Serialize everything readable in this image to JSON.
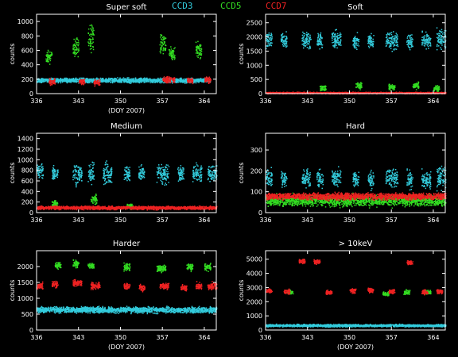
{
  "legend": [
    {
      "label": "CCD3",
      "color": "#33ccdd"
    },
    {
      "label": "CCD5",
      "color": "#33dd22"
    },
    {
      "label": "CCD7",
      "color": "#ee2222"
    }
  ],
  "chart_data": [
    {
      "type": "scatter",
      "title": "Super soft",
      "xlabel": "(DOY 2007)",
      "ylabel": "counts",
      "xlim": [
        336,
        366
      ],
      "ylim": [
        0,
        1100
      ],
      "xticks": [
        336,
        343,
        350,
        357,
        364
      ],
      "yticks": [
        0,
        200,
        400,
        600,
        800,
        1000
      ],
      "series": [
        {
          "name": "CCD3",
          "color": "#33ccdd",
          "clusters": [
            [
              336,
              365,
              190,
              30
            ]
          ]
        },
        {
          "name": "CCD5",
          "color": "#33dd22",
          "clusters": [
            [
              337.5,
              338.5,
              520,
              80
            ],
            [
              342,
              343,
              650,
              120
            ],
            [
              344.5,
              345.5,
              800,
              220
            ],
            [
              356.5,
              357.5,
              700,
              120
            ],
            [
              358,
              359,
              550,
              100
            ],
            [
              362.5,
              363.5,
              600,
              100
            ]
          ]
        },
        {
          "name": "CCD7",
          "color": "#ee2222",
          "clusters": [
            [
              338,
              339,
              170,
              40
            ],
            [
              343,
              344,
              170,
              40
            ],
            [
              345.5,
              346.5,
              160,
              40
            ],
            [
              357,
              359,
              200,
              40
            ],
            [
              361,
              362,
              190,
              40
            ],
            [
              364,
              365,
              200,
              40
            ]
          ]
        }
      ]
    },
    {
      "type": "scatter",
      "title": "Soft",
      "xlabel": "",
      "ylabel": "counts",
      "xlim": [
        336,
        366
      ],
      "ylim": [
        0,
        2800
      ],
      "xticks": [
        336,
        343,
        350,
        357,
        364
      ],
      "yticks": [
        0,
        500,
        1000,
        1500,
        2000,
        2500
      ],
      "series": [
        {
          "name": "CCD3",
          "color": "#33ccdd",
          "clusters": [
            [
              336,
              337,
              1900,
              300
            ],
            [
              338.5,
              339.5,
              1900,
              250
            ],
            [
              342,
              343.5,
              1900,
              300
            ],
            [
              344.5,
              345.5,
              1900,
              250
            ],
            [
              347,
              348.5,
              1900,
              300
            ],
            [
              350.5,
              351.5,
              1850,
              250
            ],
            [
              353,
              354,
              1850,
              250
            ],
            [
              356,
              358,
              1900,
              300
            ],
            [
              359.5,
              360.5,
              1850,
              250
            ],
            [
              362,
              363.5,
              1900,
              250
            ],
            [
              364.5,
              366,
              1950,
              300
            ]
          ]
        },
        {
          "name": "CCD5",
          "color": "#33dd22",
          "clusters": [
            [
              345,
              346,
              200,
              100
            ],
            [
              351,
              352,
              300,
              100
            ],
            [
              356.5,
              357.5,
              250,
              100
            ],
            [
              360.5,
              361.5,
              300,
              100
            ],
            [
              364,
              365,
              200,
              100
            ]
          ]
        },
        {
          "name": "CCD7",
          "color": "#ee2222",
          "clusters": [
            [
              336,
              366,
              40,
              25
            ]
          ]
        }
      ]
    },
    {
      "type": "scatter",
      "title": "Medium",
      "xlabel": "",
      "ylabel": "counts",
      "xlim": [
        336,
        366
      ],
      "ylim": [
        0,
        1500
      ],
      "xticks": [
        336,
        343,
        350,
        357,
        364
      ],
      "yticks": [
        0,
        200,
        400,
        600,
        800,
        1000,
        1200,
        1400
      ],
      "series": [
        {
          "name": "CCD3",
          "color": "#33ccdd",
          "clusters": [
            [
              336,
              337,
              800,
              150
            ],
            [
              338.5,
              339.5,
              750,
              150
            ],
            [
              342,
              343.5,
              750,
              180
            ],
            [
              344.5,
              345.5,
              750,
              180
            ],
            [
              347,
              348.5,
              750,
              180
            ],
            [
              350.5,
              351.5,
              750,
              150
            ],
            [
              353,
              354,
              750,
              150
            ],
            [
              356,
              358,
              750,
              180
            ],
            [
              359.5,
              360.5,
              750,
              150
            ],
            [
              362,
              363.5,
              750,
              150
            ],
            [
              364.5,
              366,
              750,
              150
            ]
          ]
        },
        {
          "name": "CCD5",
          "color": "#33dd22",
          "clusters": [
            [
              338.5,
              339.5,
              180,
              60
            ],
            [
              345,
              346,
              260,
              80
            ],
            [
              351,
              352,
              130,
              50
            ]
          ]
        },
        {
          "name": "CCD7",
          "color": "#ee2222",
          "clusters": [
            [
              336,
              366,
              100,
              30
            ]
          ]
        }
      ]
    },
    {
      "type": "scatter",
      "title": "Hard",
      "xlabel": "",
      "ylabel": "counts",
      "xlim": [
        336,
        366
      ],
      "ylim": [
        0,
        380
      ],
      "xticks": [
        336,
        343,
        350,
        357,
        364
      ],
      "yticks": [
        0,
        100,
        200,
        300
      ],
      "series": [
        {
          "name": "CCD3",
          "color": "#33ccdd",
          "clusters": [
            [
              336,
              337,
              170,
              40
            ],
            [
              338.5,
              339.5,
              160,
              40
            ],
            [
              342,
              343.5,
              170,
              40
            ],
            [
              344.5,
              345.5,
              160,
              40
            ],
            [
              347,
              348.5,
              170,
              40
            ],
            [
              350.5,
              351.5,
              160,
              40
            ],
            [
              353,
              354,
              160,
              40
            ],
            [
              356,
              358,
              170,
              40
            ],
            [
              359.5,
              360.5,
              160,
              40
            ],
            [
              362,
              363.5,
              160,
              40
            ],
            [
              364.5,
              366,
              170,
              50
            ]
          ]
        },
        {
          "name": "CCD5",
          "color": "#33dd22",
          "clusters": [
            [
              336,
              366,
              60,
              25
            ]
          ]
        },
        {
          "name": "CCD7",
          "color": "#ee2222",
          "clusters": [
            [
              336,
              366,
              80,
              15
            ]
          ]
        }
      ]
    },
    {
      "type": "scatter",
      "title": "Harder",
      "xlabel": "(DOY 2007)",
      "ylabel": "counts",
      "xlim": [
        336,
        366
      ],
      "ylim": [
        0,
        2500
      ],
      "xticks": [
        336,
        343,
        350,
        357,
        364
      ],
      "yticks": [
        0,
        500,
        1000,
        1500,
        2000
      ],
      "series": [
        {
          "name": "CCD3",
          "color": "#33ccdd",
          "clusters": [
            [
              336,
              366,
              650,
              90
            ]
          ]
        },
        {
          "name": "CCD5",
          "color": "#33dd22",
          "clusters": [
            [
              339,
              340,
              2050,
              100
            ],
            [
              342,
              343,
              2100,
              100
            ],
            [
              344.5,
              345.5,
              2050,
              100
            ],
            [
              350.5,
              351.5,
              2000,
              100
            ],
            [
              356,
              357.5,
              1950,
              100
            ],
            [
              361,
              362,
              2000,
              100
            ],
            [
              364,
              365,
              2000,
              100
            ]
          ]
        },
        {
          "name": "CCD7",
          "color": "#ee2222",
          "clusters": [
            [
              336,
              337,
              1400,
              100
            ],
            [
              338.5,
              339.5,
              1450,
              100
            ],
            [
              342,
              343.5,
              1500,
              100
            ],
            [
              345,
              346.5,
              1400,
              100
            ],
            [
              350.5,
              351.5,
              1400,
              100
            ],
            [
              353,
              354,
              1350,
              100
            ],
            [
              356.5,
              358,
              1400,
              100
            ],
            [
              360,
              361,
              1350,
              100
            ],
            [
              362.5,
              363.5,
              1400,
              100
            ],
            [
              364.5,
              366,
              1400,
              100
            ]
          ]
        }
      ]
    },
    {
      "type": "scatter",
      "title": "> 10keV",
      "xlabel": "(DOY 2007)",
      "ylabel": "counts",
      "xlim": [
        336,
        366
      ],
      "ylim": [
        0,
        5600
      ],
      "xticks": [
        336,
        343,
        350,
        357,
        364
      ],
      "yticks": [
        0,
        1000,
        2000,
        3000,
        4000,
        5000
      ],
      "series": [
        {
          "name": "CCD3",
          "color": "#33ccdd",
          "clusters": [
            [
              336,
              366,
              350,
              80
            ]
          ]
        },
        {
          "name": "CCD5",
          "color": "#33dd22",
          "clusters": [
            [
              339.5,
              340.5,
              2700,
              150
            ],
            [
              355.5,
              356.5,
              2600,
              150
            ],
            [
              359,
              360,
              2700,
              150
            ],
            [
              362.5,
              363.5,
              2700,
              150
            ]
          ]
        },
        {
          "name": "CCD7",
          "color": "#ee2222",
          "clusters": [
            [
              336,
              337,
              2800,
              150
            ],
            [
              339,
              340,
              2750,
              150
            ],
            [
              341.5,
              342.5,
              4900,
              150
            ],
            [
              344,
              345,
              4850,
              150
            ],
            [
              346,
              347,
              2700,
              150
            ],
            [
              350,
              351,
              2800,
              150
            ],
            [
              353,
              354,
              2850,
              150
            ],
            [
              356.5,
              357.5,
              2750,
              150
            ],
            [
              359.5,
              360.5,
              4800,
              150
            ],
            [
              362,
              363,
              2700,
              150
            ],
            [
              364.5,
              365.5,
              2750,
              150
            ]
          ]
        }
      ]
    }
  ]
}
